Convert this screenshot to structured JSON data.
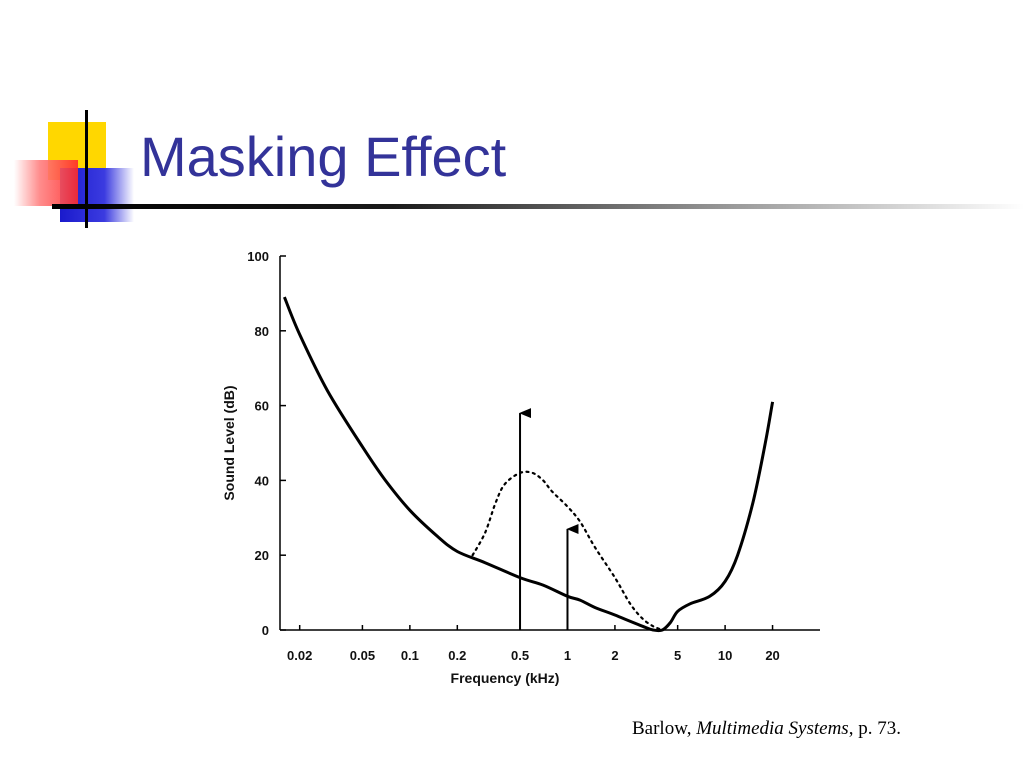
{
  "slide": {
    "title": "Masking Effect",
    "citation": {
      "author": "Barlow, ",
      "work": "Multimedia Systems",
      "page": ", p. 73."
    },
    "colors": {
      "title": "#333399",
      "deco_yellow": "#ffd700",
      "deco_red": "#ff3333",
      "deco_blue": "#2222cc"
    }
  },
  "chart_data": {
    "type": "line",
    "title": "",
    "xlabel": "Frequency (kHz)",
    "ylabel": "Sound Level (dB)",
    "x_scale": "log",
    "xlim": [
      0.015,
      40
    ],
    "ylim": [
      0,
      100
    ],
    "x_ticks": [
      {
        "value": 0.02,
        "label": "0.02"
      },
      {
        "value": 0.05,
        "label": "0.05"
      },
      {
        "value": 0.1,
        "label": "0.1"
      },
      {
        "value": 0.2,
        "label": "0.2"
      },
      {
        "value": 0.5,
        "label": "0.5"
      },
      {
        "value": 1,
        "label": "1"
      },
      {
        "value": 2,
        "label": "2"
      },
      {
        "value": 5,
        "label": "5"
      },
      {
        "value": 10,
        "label": "10"
      },
      {
        "value": 20,
        "label": "20"
      }
    ],
    "y_ticks": [
      {
        "value": 0,
        "label": "0"
      },
      {
        "value": 20,
        "label": "20"
      },
      {
        "value": 40,
        "label": "40"
      },
      {
        "value": 60,
        "label": "60"
      },
      {
        "value": 80,
        "label": "80"
      },
      {
        "value": 100,
        "label": "100"
      }
    ],
    "series": [
      {
        "style": "solid",
        "x": [
          0.016,
          0.02,
          0.03,
          0.05,
          0.07,
          0.1,
          0.15,
          0.2,
          0.3,
          0.5,
          0.7,
          1,
          1.2,
          1.5,
          2,
          3,
          3.5,
          4,
          4.5,
          5,
          6,
          8,
          10,
          12,
          15,
          18,
          20
        ],
        "y": [
          89,
          79,
          64,
          49,
          40,
          32,
          25,
          21,
          18,
          14,
          12,
          9,
          8,
          6,
          4,
          1,
          0,
          0,
          2,
          5,
          7,
          9,
          13,
          20,
          34,
          50,
          61
        ]
      },
      {
        "style": "dotted",
        "x": [
          0.25,
          0.3,
          0.35,
          0.4,
          0.5,
          0.6,
          0.7,
          0.8,
          1,
          1.2,
          1.5,
          2,
          2.5,
          3,
          3.5,
          4
        ],
        "y": [
          20,
          26,
          34,
          39,
          42,
          42,
          40,
          37,
          33,
          29,
          22,
          14,
          7,
          3,
          1,
          0
        ]
      }
    ],
    "arrows": [
      {
        "x": 0.5,
        "y_from": 0,
        "y_to": 58
      },
      {
        "x": 1,
        "y_from": 0,
        "y_to": 27
      }
    ]
  }
}
